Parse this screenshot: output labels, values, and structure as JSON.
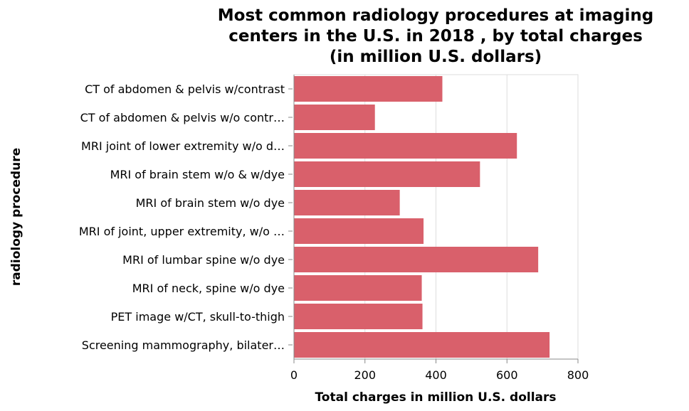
{
  "chart_data": {
    "type": "bar",
    "orientation": "horizontal",
    "title": "Most common radiology procedures at imaging centers in the U.S. in 2018 , by total charges (in million U.S. dollars)",
    "title_lines": [
      "Most common radiology procedures at imaging",
      "centers in the U.S. in 2018 , by total charges",
      "(in million U.S. dollars)"
    ],
    "xlabel": "Total charges in million U.S. dollars",
    "ylabel": "radiology procedure",
    "xlim": [
      0,
      800
    ],
    "xticks": [
      "0",
      "200",
      "400",
      "600",
      "800"
    ],
    "grid": true,
    "bar_color": "#d9606b",
    "categories": [
      "CT of abdomen & pelvis w/contrast",
      "CT of abdomen & pelvis w/o contr…",
      "MRI joint of lower extremity w/o d…",
      "MRI of brain stem w/o & w/dye",
      "MRI of brain stem w/o dye",
      "MRI of joint, upper extremity, w/o …",
      "MRI of lumbar spine w/o dye",
      "MRI of neck, spine w/o dye",
      "PET image w/CT, skull-to-thigh",
      "Screening mammography, bilater…"
    ],
    "values": [
      418,
      228,
      628,
      524,
      298,
      365,
      688,
      360,
      362,
      720
    ]
  }
}
